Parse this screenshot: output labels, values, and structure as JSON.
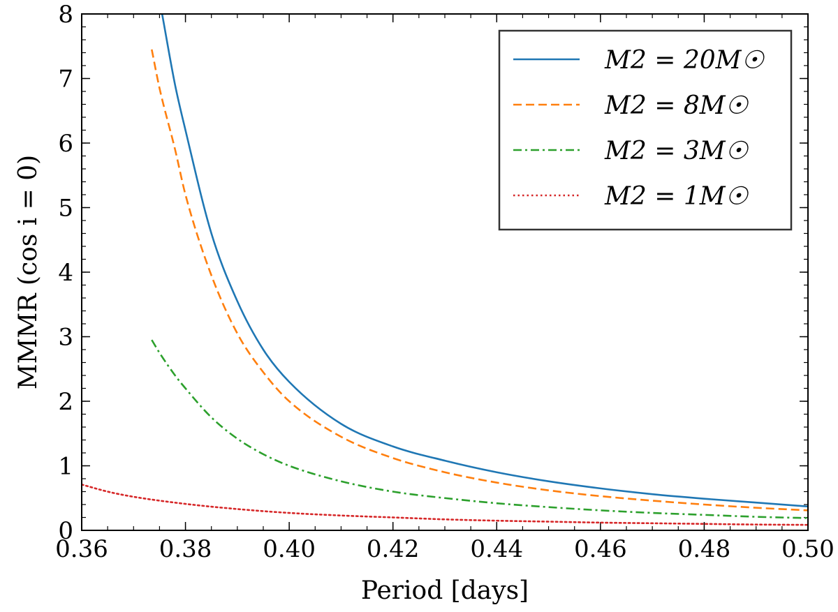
{
  "chart_data": {
    "type": "line",
    "xlabel": "Period [days]",
    "ylabel": "MMMR (cos i = 0)",
    "xlim": [
      0.36,
      0.5
    ],
    "ylim": [
      0,
      8
    ],
    "xticks": [
      0.36,
      0.38,
      0.4,
      0.42,
      0.44,
      0.46,
      0.48,
      0.5
    ],
    "xtick_labels": [
      "0.36",
      "0.38",
      "0.40",
      "0.42",
      "0.44",
      "0.46",
      "0.48",
      "0.50"
    ],
    "yticks": [
      0,
      1,
      2,
      3,
      4,
      5,
      6,
      7,
      8
    ],
    "ytick_labels": [
      "0",
      "1",
      "2",
      "3",
      "4",
      "5",
      "6",
      "7",
      "8"
    ],
    "legend_position": "top-right",
    "grid": false,
    "series": [
      {
        "name": "M2 = 20M☉",
        "color": "#1f77b4",
        "dash": "solid",
        "x": [
          0.3755,
          0.378,
          0.38,
          0.385,
          0.39,
          0.395,
          0.4,
          0.41,
          0.42,
          0.43,
          0.44,
          0.45,
          0.46,
          0.47,
          0.48,
          0.49,
          0.5
        ],
        "y": [
          8.0,
          6.9,
          6.2,
          4.6,
          3.55,
          2.8,
          2.3,
          1.65,
          1.3,
          1.08,
          0.9,
          0.76,
          0.65,
          0.56,
          0.49,
          0.43,
          0.37
        ]
      },
      {
        "name": "M2 = 8M☉",
        "color": "#ff7f0e",
        "dash": "dashed",
        "x": [
          0.3735,
          0.375,
          0.378,
          0.38,
          0.385,
          0.39,
          0.395,
          0.4,
          0.41,
          0.42,
          0.43,
          0.44,
          0.45,
          0.46,
          0.47,
          0.48,
          0.49,
          0.5
        ],
        "y": [
          7.45,
          6.85,
          5.9,
          5.2,
          3.95,
          3.05,
          2.45,
          2.0,
          1.45,
          1.12,
          0.9,
          0.74,
          0.62,
          0.53,
          0.46,
          0.4,
          0.35,
          0.31
        ]
      },
      {
        "name": "M2 = 3M☉",
        "color": "#2ca02c",
        "dash": "dashdot",
        "x": [
          0.3735,
          0.375,
          0.378,
          0.38,
          0.385,
          0.39,
          0.395,
          0.4,
          0.41,
          0.42,
          0.43,
          0.44,
          0.45,
          0.46,
          0.47,
          0.48,
          0.49,
          0.5
        ],
        "y": [
          2.95,
          2.75,
          2.4,
          2.2,
          1.75,
          1.42,
          1.18,
          1.0,
          0.76,
          0.6,
          0.5,
          0.42,
          0.36,
          0.31,
          0.27,
          0.24,
          0.21,
          0.19
        ]
      },
      {
        "name": "M2 = 1M☉",
        "color": "#d62728",
        "dash": "dotted",
        "x": [
          0.36,
          0.365,
          0.37,
          0.38,
          0.39,
          0.4,
          0.41,
          0.42,
          0.43,
          0.44,
          0.45,
          0.46,
          0.47,
          0.48,
          0.49,
          0.5
        ],
        "y": [
          0.71,
          0.6,
          0.52,
          0.41,
          0.33,
          0.27,
          0.23,
          0.2,
          0.17,
          0.15,
          0.135,
          0.12,
          0.11,
          0.1,
          0.09,
          0.085
        ]
      }
    ]
  }
}
